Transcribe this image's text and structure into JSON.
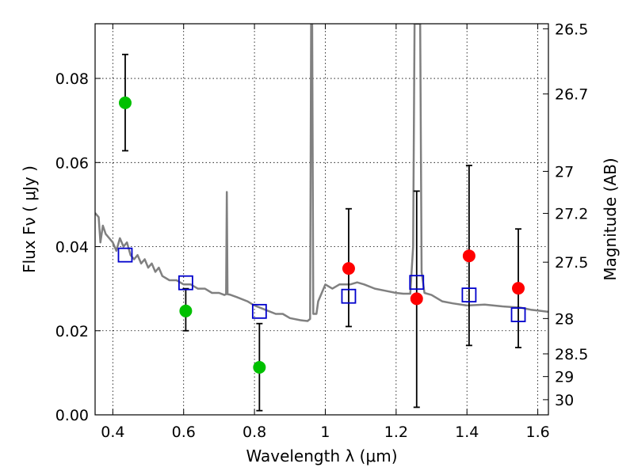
{
  "chart_data": {
    "type": "scatter",
    "title": "",
    "xlabel": "Wavelength  λ (μm)",
    "ylabel": "Flux  Fν  ( μJy )",
    "y2label": "Magnitude (AB)",
    "xlim": [
      0.35,
      1.63
    ],
    "ylim": [
      0.0,
      0.093
    ],
    "grid": true,
    "x_ticks": [
      0.4,
      0.6,
      0.8,
      1.0,
      1.2,
      1.4,
      1.6
    ],
    "x_tick_labels": [
      "0.4",
      "0.6",
      "0.8",
      "1",
      "1.2",
      "1.4",
      "1.6"
    ],
    "y_ticks": [
      0.0,
      0.02,
      0.04,
      0.06,
      0.08
    ],
    "y_tick_labels": [
      "0.00",
      "0.02",
      "0.04",
      "0.06",
      "0.08"
    ],
    "y2_ticks": [
      {
        "label": "26.5",
        "flux": 0.0918
      },
      {
        "label": "26.7",
        "flux": 0.0763
      },
      {
        "label": "27",
        "flux": 0.0579
      },
      {
        "label": "27.2",
        "flux": 0.0479
      },
      {
        "label": "27.5",
        "flux": 0.0363
      },
      {
        "label": "28",
        "flux": 0.0229
      },
      {
        "label": "28.5",
        "flux": 0.0145
      },
      {
        "label": "29",
        "flux": 0.0091
      },
      {
        "label": "30",
        "flux": 0.0036
      }
    ],
    "colors": {
      "green": "#00c000",
      "red": "#ff0000",
      "blue": "#0000cc",
      "model": "#808080",
      "errorbar": "#000000"
    },
    "series": [
      {
        "marker": "circle",
        "color": "green",
        "points": [
          {
            "x": 0.435,
            "y": 0.0742,
            "yerr_low": 0.0628,
            "yerr_high": 0.0857
          },
          {
            "x": 0.606,
            "y": 0.0247,
            "yerr_low": 0.02,
            "yerr_high": 0.03
          },
          {
            "x": 0.814,
            "y": 0.0113,
            "yerr_low": 0.001,
            "yerr_high": 0.0217
          }
        ]
      },
      {
        "marker": "circle",
        "color": "red",
        "points": [
          {
            "x": 1.066,
            "y": 0.0348,
            "yerr_low": 0.021,
            "yerr_high": 0.049
          },
          {
            "x": 1.258,
            "y": 0.0276,
            "yerr_low": 0.0018,
            "yerr_high": 0.0532
          },
          {
            "x": 1.406,
            "y": 0.0378,
            "yerr_low": 0.0165,
            "yerr_high": 0.0593
          },
          {
            "x": 1.545,
            "y": 0.0301,
            "yerr_low": 0.016,
            "yerr_high": 0.0442
          }
        ]
      },
      {
        "marker": "square",
        "color": "blue",
        "points": [
          {
            "x": 0.435,
            "y": 0.038
          },
          {
            "x": 0.606,
            "y": 0.0314
          },
          {
            "x": 0.814,
            "y": 0.0246
          },
          {
            "x": 1.066,
            "y": 0.0282
          },
          {
            "x": 1.258,
            "y": 0.0315
          },
          {
            "x": 1.406,
            "y": 0.0285
          },
          {
            "x": 1.545,
            "y": 0.0238
          }
        ]
      }
    ],
    "model_spectrum": {
      "color": "model",
      "points": [
        [
          0.35,
          0.048
        ],
        [
          0.36,
          0.047
        ],
        [
          0.365,
          0.041
        ],
        [
          0.372,
          0.045
        ],
        [
          0.38,
          0.043
        ],
        [
          0.39,
          0.042
        ],
        [
          0.4,
          0.041
        ],
        [
          0.41,
          0.039
        ],
        [
          0.42,
          0.042
        ],
        [
          0.43,
          0.04
        ],
        [
          0.44,
          0.041
        ],
        [
          0.45,
          0.038
        ],
        [
          0.46,
          0.037
        ],
        [
          0.47,
          0.038
        ],
        [
          0.48,
          0.036
        ],
        [
          0.49,
          0.037
        ],
        [
          0.5,
          0.035
        ],
        [
          0.51,
          0.036
        ],
        [
          0.52,
          0.034
        ],
        [
          0.53,
          0.035
        ],
        [
          0.54,
          0.033
        ],
        [
          0.56,
          0.032
        ],
        [
          0.58,
          0.032
        ],
        [
          0.6,
          0.031
        ],
        [
          0.62,
          0.031
        ],
        [
          0.64,
          0.03
        ],
        [
          0.66,
          0.03
        ],
        [
          0.68,
          0.029
        ],
        [
          0.7,
          0.029
        ],
        [
          0.715,
          0.0285
        ],
        [
          0.72,
          0.0287
        ],
        [
          0.722,
          0.053
        ],
        [
          0.724,
          0.0287
        ],
        [
          0.73,
          0.0286
        ],
        [
          0.75,
          0.028
        ],
        [
          0.78,
          0.027
        ],
        [
          0.8,
          0.026
        ],
        [
          0.83,
          0.025
        ],
        [
          0.86,
          0.024
        ],
        [
          0.88,
          0.024
        ],
        [
          0.9,
          0.023
        ],
        [
          0.93,
          0.0225
        ],
        [
          0.95,
          0.0223
        ],
        [
          0.957,
          0.0228
        ],
        [
          0.96,
          0.093
        ],
        [
          0.963,
          0.093
        ],
        [
          0.966,
          0.024
        ],
        [
          0.975,
          0.024
        ],
        [
          0.98,
          0.027
        ],
        [
          0.99,
          0.029
        ],
        [
          1.0,
          0.031
        ],
        [
          1.02,
          0.03
        ],
        [
          1.04,
          0.031
        ],
        [
          1.07,
          0.031
        ],
        [
          1.09,
          0.0315
        ],
        [
          1.11,
          0.031
        ],
        [
          1.14,
          0.03
        ],
        [
          1.17,
          0.0295
        ],
        [
          1.2,
          0.029
        ],
        [
          1.22,
          0.0288
        ],
        [
          1.24,
          0.0288
        ],
        [
          1.248,
          0.04
        ],
        [
          1.252,
          0.093
        ],
        [
          1.268,
          0.093
        ],
        [
          1.272,
          0.034
        ],
        [
          1.28,
          0.029
        ],
        [
          1.3,
          0.0285
        ],
        [
          1.33,
          0.027
        ],
        [
          1.36,
          0.0265
        ],
        [
          1.4,
          0.026
        ],
        [
          1.45,
          0.0262
        ],
        [
          1.5,
          0.0258
        ],
        [
          1.55,
          0.0255
        ],
        [
          1.58,
          0.025
        ],
        [
          1.6,
          0.0248
        ],
        [
          1.63,
          0.0245
        ]
      ]
    }
  }
}
